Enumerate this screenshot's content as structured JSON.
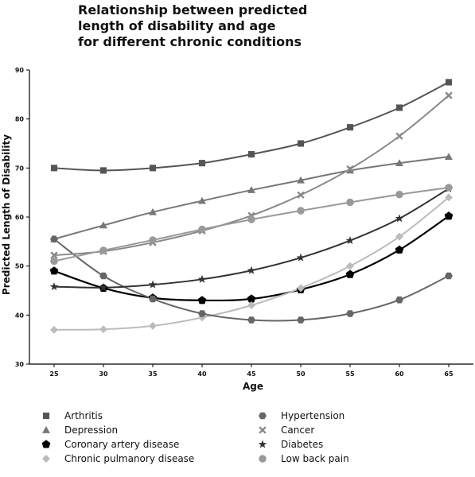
{
  "chart_data": {
    "type": "line",
    "title_lines": [
      "Relationship between predicted",
      "length of disability and age",
      "for different chronic conditions"
    ],
    "xlabel": "Age",
    "ylabel": "Predicted Length of Disability",
    "x": [
      25,
      30,
      35,
      40,
      45,
      50,
      55,
      60,
      65
    ],
    "x_ticks": [
      "25",
      "30",
      "35",
      "40",
      "45",
      "50",
      "55",
      "60",
      "65"
    ],
    "y_ticks": [
      "30",
      "40",
      "50",
      "60",
      "70",
      "80",
      "90"
    ],
    "ylim": [
      30,
      90
    ],
    "xlim": [
      22.5,
      67.5
    ],
    "grid": false,
    "legend_position": "bottom",
    "series": [
      {
        "name": "Arthritis",
        "marker": "square",
        "color": "#555555",
        "values": [
          70,
          69.5,
          70,
          71,
          72.8,
          75,
          78.3,
          82.3,
          87.5
        ]
      },
      {
        "name": "Depression",
        "marker": "triangle",
        "color": "#777777",
        "values": [
          55.5,
          58.3,
          61,
          63.3,
          65.5,
          67.5,
          69.5,
          71,
          72.3
        ]
      },
      {
        "name": "Coronary artery disease",
        "marker": "pentagon",
        "color": "#000000",
        "values": [
          49,
          45.5,
          43.5,
          43,
          43.3,
          45.2,
          48.3,
          53.3,
          60.2
        ]
      },
      {
        "name": "Chronic pulmanory disease",
        "marker": "diamond",
        "color": "#bbbbbb",
        "values": [
          37,
          37.1,
          37.8,
          39.5,
          42,
          45.5,
          50,
          56,
          64
        ]
      },
      {
        "name": "Hypertension",
        "marker": "hexagon",
        "color": "#666666",
        "values": [
          55.5,
          48,
          43.3,
          40.3,
          39,
          39,
          40.3,
          43.1,
          48
        ]
      },
      {
        "name": "Cancer",
        "marker": "x",
        "color": "#888888",
        "values": [
          52.2,
          53,
          54.8,
          57.2,
          60.3,
          64.5,
          69.8,
          76.5,
          84.8
        ]
      },
      {
        "name": "Diabetes",
        "marker": "star",
        "color": "#333333",
        "values": [
          45.8,
          45.6,
          46.2,
          47.3,
          49.1,
          51.7,
          55.2,
          59.7,
          65.8
        ]
      },
      {
        "name": "Low back pain",
        "marker": "circle",
        "color": "#999999",
        "values": [
          51,
          53.2,
          55.3,
          57.5,
          59.5,
          61.3,
          63,
          64.6,
          66
        ]
      }
    ]
  }
}
